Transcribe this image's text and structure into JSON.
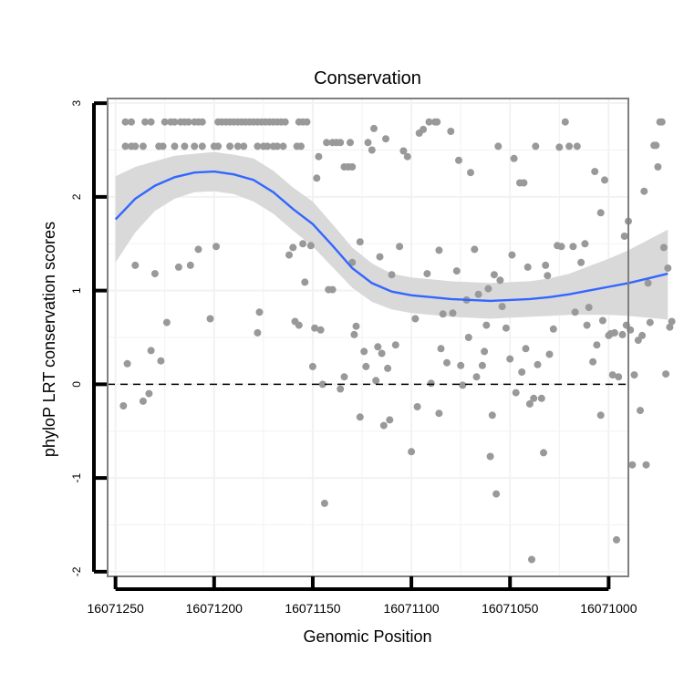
{
  "chart_data": {
    "type": "scatter",
    "title": "Conservation",
    "xlabel": "Genomic Position",
    "ylabel": "phyloP LRT conservation scores",
    "x_reversed": true,
    "xlim": [
      16071254,
      16070990
    ],
    "ylim": [
      -2.05,
      3.05
    ],
    "x_ticks": [
      16071250,
      16071200,
      16071150,
      16071100,
      16071050,
      16071000
    ],
    "x_tick_labels": [
      "16071250",
      "16071200",
      "16071150",
      "16071100",
      "16071050",
      "16071000"
    ],
    "y_ticks": [
      -2,
      -1,
      0,
      1,
      2,
      3
    ],
    "y_tick_labels": [
      "-2",
      "-1",
      "0",
      "1",
      "2",
      "3"
    ],
    "reference_line": {
      "y": 0,
      "style": "dashed"
    },
    "colors": {
      "points": "#999999",
      "smooth": "#3366ff",
      "ribbon": "#d9d9d9",
      "grid": "#f2f2f2",
      "border": "#7f7f7f"
    },
    "points": [
      [
        16071245,
        2.8
      ],
      [
        16071242,
        2.8
      ],
      [
        16071235,
        2.8
      ],
      [
        16071232,
        2.8
      ],
      [
        16071225,
        2.8
      ],
      [
        16071222,
        2.8
      ],
      [
        16071220,
        2.8
      ],
      [
        16071217,
        2.8
      ],
      [
        16071215,
        2.8
      ],
      [
        16071213,
        2.8
      ],
      [
        16071210,
        2.8
      ],
      [
        16071208,
        2.8
      ],
      [
        16071206,
        2.8
      ],
      [
        16071198,
        2.8
      ],
      [
        16071196,
        2.8
      ],
      [
        16071194,
        2.8
      ],
      [
        16071192,
        2.8
      ],
      [
        16071190,
        2.8
      ],
      [
        16071188,
        2.8
      ],
      [
        16071186,
        2.8
      ],
      [
        16071184,
        2.8
      ],
      [
        16071182,
        2.8
      ],
      [
        16071180,
        2.8
      ],
      [
        16071178,
        2.8
      ],
      [
        16071176,
        2.8
      ],
      [
        16071174,
        2.8
      ],
      [
        16071172,
        2.8
      ],
      [
        16071170,
        2.8
      ],
      [
        16071168,
        2.8
      ],
      [
        16071166,
        2.8
      ],
      [
        16071164,
        2.8
      ],
      [
        16071157,
        2.8
      ],
      [
        16071155,
        2.8
      ],
      [
        16071153,
        2.8
      ],
      [
        16071245,
        2.54
      ],
      [
        16071242,
        2.54
      ],
      [
        16071240,
        2.54
      ],
      [
        16071236,
        2.54
      ],
      [
        16071228,
        2.54
      ],
      [
        16071226,
        2.54
      ],
      [
        16071220,
        2.54
      ],
      [
        16071215,
        2.54
      ],
      [
        16071210,
        2.54
      ],
      [
        16071206,
        2.54
      ],
      [
        16071200,
        2.54
      ],
      [
        16071198,
        2.54
      ],
      [
        16071192,
        2.54
      ],
      [
        16071188,
        2.54
      ],
      [
        16071185,
        2.54
      ],
      [
        16071178,
        2.54
      ],
      [
        16071175,
        2.54
      ],
      [
        16071173,
        2.54
      ],
      [
        16071170,
        2.54
      ],
      [
        16071168,
        2.54
      ],
      [
        16071165,
        2.54
      ],
      [
        16071158,
        2.54
      ],
      [
        16071156,
        2.54
      ],
      [
        16071246,
        -0.23
      ],
      [
        16071244,
        0.22
      ],
      [
        16071240,
        1.27
      ],
      [
        16071236,
        -0.18
      ],
      [
        16071233,
        -0.1
      ],
      [
        16071232,
        0.36
      ],
      [
        16071230,
        1.18
      ],
      [
        16071227,
        0.25
      ],
      [
        16071224,
        0.66
      ],
      [
        16071218,
        1.25
      ],
      [
        16071212,
        1.27
      ],
      [
        16071208,
        1.44
      ],
      [
        16071202,
        0.7
      ],
      [
        16071199,
        1.47
      ],
      [
        16071178,
        0.55
      ],
      [
        16071177,
        0.77
      ],
      [
        16071162,
        1.38
      ],
      [
        16071160,
        1.46
      ],
      [
        16071159,
        0.67
      ],
      [
        16071157,
        0.63
      ],
      [
        16071155,
        1.5
      ],
      [
        16071154,
        1.09
      ],
      [
        16071151,
        1.48
      ],
      [
        16071150,
        0.19
      ],
      [
        16071149,
        0.6
      ],
      [
        16071148,
        2.2
      ],
      [
        16071147,
        2.43
      ],
      [
        16071146,
        0.58
      ],
      [
        16071145,
        0
      ],
      [
        16071143,
        2.58
      ],
      [
        16071142,
        1.01
      ],
      [
        16071140,
        2.58
      ],
      [
        16071140,
        1.01
      ],
      [
        16071138,
        2.58
      ],
      [
        16071136,
        2.58
      ],
      [
        16071134,
        2.32
      ],
      [
        16071132,
        2.32
      ],
      [
        16071130,
        2.32
      ],
      [
        16071144,
        -1.27
      ],
      [
        16071136,
        -0.05
      ],
      [
        16071134,
        0.08
      ],
      [
        16071130,
        1.3
      ],
      [
        16071129,
        0.53
      ],
      [
        16071128,
        0.62
      ],
      [
        16071126,
        -0.35
      ],
      [
        16071126,
        1.52
      ],
      [
        16071124,
        0.35
      ],
      [
        16071123,
        0.19
      ],
      [
        16071122,
        2.58
      ],
      [
        16071120,
        2.5
      ],
      [
        16071119,
        2.73
      ],
      [
        16071118,
        0.04
      ],
      [
        16071117,
        0.4
      ],
      [
        16071116,
        1.36
      ],
      [
        16071115,
        0.33
      ],
      [
        16071114,
        -0.44
      ],
      [
        16071113,
        2.62
      ],
      [
        16071112,
        0.17
      ],
      [
        16071111,
        -0.38
      ],
      [
        16071110,
        1.17
      ],
      [
        16071108,
        0.42
      ],
      [
        16071106,
        1.47
      ],
      [
        16071104,
        2.49
      ],
      [
        16071102,
        2.43
      ],
      [
        16071100,
        -0.72
      ],
      [
        16071098,
        0.7
      ],
      [
        16071096,
        2.68
      ],
      [
        16071094,
        2.72
      ],
      [
        16071092,
        1.18
      ],
      [
        16071091,
        2.8
      ],
      [
        16071090,
        0.01
      ],
      [
        16071088,
        2.8
      ],
      [
        16071087,
        2.8
      ],
      [
        16071086,
        1.43
      ],
      [
        16071085,
        0.38
      ],
      [
        16071084,
        0.75
      ],
      [
        16071082,
        0.23
      ],
      [
        16071080,
        2.7
      ],
      [
        16071079,
        0.76
      ],
      [
        16071077,
        1.21
      ],
      [
        16071076,
        2.39
      ],
      [
        16071075,
        0.2
      ],
      [
        16071074,
        -0.01
      ],
      [
        16071072,
        0.9
      ],
      [
        16071071,
        0.5
      ],
      [
        16071070,
        2.26
      ],
      [
        16071068,
        1.44
      ],
      [
        16071067,
        0.08
      ],
      [
        16071066,
        0.96
      ],
      [
        16071064,
        0.2
      ],
      [
        16071063,
        0.35
      ],
      [
        16071062,
        0.63
      ],
      [
        16071061,
        1.02
      ],
      [
        16071060,
        -0.77
      ],
      [
        16071059,
        -0.33
      ],
      [
        16071058,
        1.17
      ],
      [
        16071057,
        -1.17
      ],
      [
        16071056,
        2.54
      ],
      [
        16071055,
        1.11
      ],
      [
        16071054,
        0.83
      ],
      [
        16071052,
        0.6
      ],
      [
        16071050,
        0.27
      ],
      [
        16071049,
        1.38
      ],
      [
        16071048,
        2.41
      ],
      [
        16071047,
        -0.09
      ],
      [
        16071045,
        2.15
      ],
      [
        16071044,
        0.13
      ],
      [
        16071043,
        2.15
      ],
      [
        16071042,
        0.38
      ],
      [
        16071041,
        1.25
      ],
      [
        16071040,
        -0.21
      ],
      [
        16071039,
        -1.87
      ],
      [
        16071038,
        -0.15
      ],
      [
        16071037,
        2.54
      ],
      [
        16071036,
        0.21
      ],
      [
        16071034,
        -0.15
      ],
      [
        16071033,
        -0.73
      ],
      [
        16071032,
        1.27
      ],
      [
        16071031,
        1.16
      ],
      [
        16071030,
        0.32
      ],
      [
        16071028,
        0.59
      ],
      [
        16071026,
        1.48
      ],
      [
        16071025,
        2.53
      ],
      [
        16071024,
        1.47
      ],
      [
        16071022,
        2.8
      ],
      [
        16071020,
        2.54
      ],
      [
        16071018,
        1.47
      ],
      [
        16071017,
        0.77
      ],
      [
        16071016,
        2.54
      ],
      [
        16071014,
        1.3
      ],
      [
        16071012,
        1.5
      ],
      [
        16071011,
        0.63
      ],
      [
        16071010,
        0.82
      ],
      [
        16071008,
        0.24
      ],
      [
        16071007,
        2.27
      ],
      [
        16071006,
        0.42
      ],
      [
        16071004,
        1.83
      ],
      [
        16071003,
        0.68
      ],
      [
        16071002,
        2.18
      ],
      [
        16071000,
        0.52
      ],
      [
        16070999,
        0.54
      ],
      [
        16070998,
        0.1
      ],
      [
        16070997,
        0.55
      ],
      [
        16070996,
        -1.66
      ],
      [
        16070995,
        0.08
      ],
      [
        16070993,
        0.53
      ],
      [
        16070992,
        1.58
      ],
      [
        16070991,
        0.63
      ],
      [
        16070990,
        1.74
      ],
      [
        16070989,
        0.58
      ],
      [
        16070988,
        -0.86
      ],
      [
        16070987,
        0.1
      ],
      [
        16070985,
        0.47
      ],
      [
        16070984,
        -0.28
      ],
      [
        16070983,
        0.52
      ],
      [
        16070982,
        2.06
      ],
      [
        16070981,
        -0.86
      ],
      [
        16070980,
        1.08
      ],
      [
        16070979,
        0.66
      ],
      [
        16070977,
        2.55
      ],
      [
        16070976,
        2.55
      ],
      [
        16070975,
        2.32
      ],
      [
        16070974,
        2.8
      ],
      [
        16070973,
        2.8
      ],
      [
        16070972,
        1.46
      ],
      [
        16070971,
        0.11
      ],
      [
        16070970,
        1.24
      ],
      [
        16070969,
        0.61
      ],
      [
        16070968,
        0.67
      ],
      [
        16071131,
        2.58
      ],
      [
        16071097,
        -0.24
      ],
      [
        16071086,
        -0.31
      ],
      [
        16071004,
        -0.33
      ]
    ],
    "smooth": {
      "x": [
        16071250,
        16071240,
        16071230,
        16071220,
        16071210,
        16071200,
        16071190,
        16071180,
        16071170,
        16071160,
        16071150,
        16071140,
        16071130,
        16071120,
        16071110,
        16071100,
        16071090,
        16071080,
        16071070,
        16071060,
        16071050,
        16071040,
        16071030,
        16071020,
        16071010,
        16071000,
        16070990,
        16070980,
        16070970
      ],
      "y": [
        1.76,
        1.98,
        2.12,
        2.21,
        2.26,
        2.27,
        2.24,
        2.18,
        2.05,
        1.87,
        1.71,
        1.48,
        1.24,
        1.08,
        0.99,
        0.95,
        0.93,
        0.91,
        0.9,
        0.89,
        0.9,
        0.91,
        0.93,
        0.96,
        1.0,
        1.04,
        1.08,
        1.13,
        1.18
      ],
      "lower": [
        1.3,
        1.62,
        1.85,
        1.98,
        2.05,
        2.06,
        2.03,
        1.95,
        1.82,
        1.64,
        1.47,
        1.25,
        1.03,
        0.88,
        0.8,
        0.76,
        0.74,
        0.72,
        0.71,
        0.7,
        0.71,
        0.72,
        0.73,
        0.74,
        0.74,
        0.74,
        0.73,
        0.71,
        0.69
      ],
      "upper": [
        2.22,
        2.32,
        2.38,
        2.44,
        2.46,
        2.48,
        2.45,
        2.41,
        2.28,
        2.1,
        1.95,
        1.71,
        1.46,
        1.29,
        1.18,
        1.14,
        1.12,
        1.1,
        1.09,
        1.08,
        1.09,
        1.1,
        1.13,
        1.18,
        1.26,
        1.34,
        1.43,
        1.54,
        1.65
      ]
    }
  }
}
